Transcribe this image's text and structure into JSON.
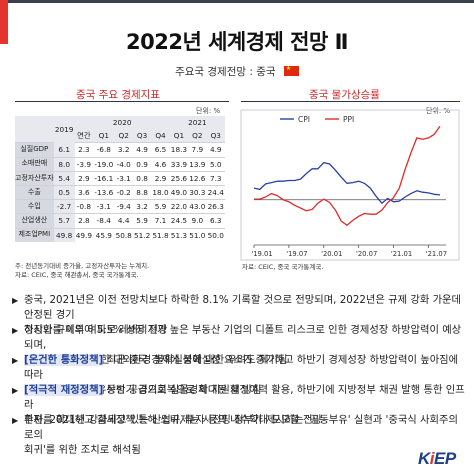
{
  "title": "2022년 세계경제 전망 Ⅱ",
  "subtitle": "주요국 경제전망 : 중국",
  "left_panel": {
    "title": "중국 주요 경제지표",
    "unit": "단위: %",
    "header": {
      "y2019": "2019",
      "y2020": "2020",
      "y2021": "2021",
      "cols": [
        "연간",
        "Q1",
        "Q2",
        "Q3",
        "Q4",
        "Q1",
        "Q2",
        "Q3"
      ]
    },
    "rows": [
      {
        "label": "실질GDP",
        "values": [
          "6.1",
          "2.3",
          "-6.8",
          "3.2",
          "4.9",
          "6.5",
          "18.3",
          "7.9",
          "4.9"
        ]
      },
      {
        "label": "소매판매",
        "values": [
          "8.0",
          "-3.9",
          "-19.0",
          "-4.0",
          "0.9",
          "4.6",
          "33.9",
          "13.9",
          "5.0"
        ]
      },
      {
        "label": "고정자산투자",
        "values": [
          "5.4",
          "2.9",
          "-16.1",
          "-3.1",
          "0.8",
          "2.9",
          "25.6",
          "12.6",
          "7.3"
        ]
      },
      {
        "label": "수출",
        "values": [
          "0.5",
          "3.6",
          "-13.6",
          "-0.2",
          "8.8",
          "18.0",
          "49.0",
          "30.3",
          "24.4"
        ]
      },
      {
        "label": "수입",
        "values": [
          "-2.7",
          "-0.8",
          "-3.1",
          "-9.4",
          "3.2",
          "5.9",
          "22.0",
          "43.0",
          "26.3"
        ]
      },
      {
        "label": "산업생산",
        "values": [
          "5.7",
          "2.8",
          "-8.4",
          "4.4",
          "5.9",
          "7.1",
          "24.5",
          "9.0",
          "6.3"
        ]
      },
      {
        "label": "제조업PMI",
        "values": [
          "49.8",
          "49.9",
          "45.9",
          "50.8",
          "51.2",
          "51.8",
          "51.3",
          "51.0",
          "50.0"
        ]
      }
    ],
    "source": [
      "주: 전년동기대비 증가율, 고정자산투자는 누계치.",
      "자료: CEIC, 중국 해관총서, 중국 국가통계국."
    ]
  },
  "right_panel": {
    "title": "중국 물가상승률",
    "unit": "단위: %",
    "source": "자료: CEIC, 중국 국가통계국.",
    "legend": [
      "CPI",
      "PPI"
    ]
  },
  "chart_data": {
    "type": "line",
    "title": "중국 물가상승률",
    "xlabel": "",
    "ylabel": "",
    "x_ticks": [
      "'19.01",
      "'19.07",
      "'20.01",
      "'20.07",
      "'21.01",
      "'21.07"
    ],
    "ylim": [
      -6,
      10
    ],
    "grid": false,
    "legend_position": "top",
    "series": [
      {
        "name": "CPI",
        "color": "#2b3fa6",
        "values": [
          1.7,
          1.5,
          2.3,
          2.5,
          2.7,
          2.7,
          2.8,
          2.8,
          3.0,
          3.8,
          4.5,
          4.5,
          5.4,
          5.2,
          4.3,
          3.3,
          2.4,
          2.5,
          2.7,
          2.4,
          1.7,
          0.5,
          -0.5,
          0.2,
          -0.3,
          -0.2,
          0.4,
          0.9,
          1.3,
          1.1,
          1.0,
          0.8,
          0.7
        ]
      },
      {
        "name": "PPI",
        "color": "#e02b2b",
        "values": [
          0.1,
          0.1,
          0.4,
          0.9,
          0.6,
          0.0,
          -0.3,
          -0.8,
          -1.2,
          -1.6,
          -1.4,
          -0.5,
          0.1,
          -0.4,
          -1.5,
          -3.1,
          -3.7,
          -3.0,
          -2.4,
          -2.0,
          -2.1,
          -2.1,
          -1.5,
          -0.4,
          0.3,
          1.7,
          4.4,
          6.8,
          9.0,
          8.8,
          9.0,
          9.5,
          10.7
        ]
      }
    ]
  },
  "bullets": [
    {
      "marker": "▶",
      "highlight": "",
      "lines": [
        "중국, 2021년은 이전 전망치보다 하락한 8.1% 기록할 것으로 전망되며, 2022년은 규제 강화 가운데 안정된 경기",
        "정상화를 이루어 5.5% 성장 전망"
      ]
    },
    {
      "marker": "▶",
      "highlight": "",
      "lines": [
        "하지만 규제의 여파로 레버리지가 높은 부동산 기업의 디폴트 리스크로 인한 경제성장 하방압력이 예상되며,",
        "미-중 갈등으로 인한 대외환경 불확실성에 대한 우려도 제기됨"
      ]
    },
    {
      "marker": "▶",
      "highlight": "[온건한 통화정책]",
      "lines": [
        " 최근 중국 경제에 불확실성 요소가 증가하고 하반기 경제성장 하방압력이 높아짐에 따라",
        "중국은 안정적인 유동성 공급으로 실물경제 지원할 방침"
      ]
    },
    {
      "marker": "▶",
      "highlight": "[적극적 재정정책]",
      "lines": [
        " 상반기 경기회복으로 확대된 재정여력 활용, 하반기에 지방정부 채권 발행 통한 인프라",
        "투자를 확대하고 감세정책 통해 소비, 투자 등의 내수확대 도모할 전망"
      ]
    },
    {
      "marker": "▶",
      "highlight": "",
      "lines": [
        "한편, 2021년 강화되고 있는 산업규제는 시진핑 정부가 제시하는 '공동부유' 실현과 '중국식 사회주의로의",
        "회귀'를 위한 조치로 해석됨"
      ]
    }
  ],
  "logo": {
    "pre": "K",
    "mid": "i",
    "post": "EP"
  },
  "flag_icon": "china-flag-icon"
}
